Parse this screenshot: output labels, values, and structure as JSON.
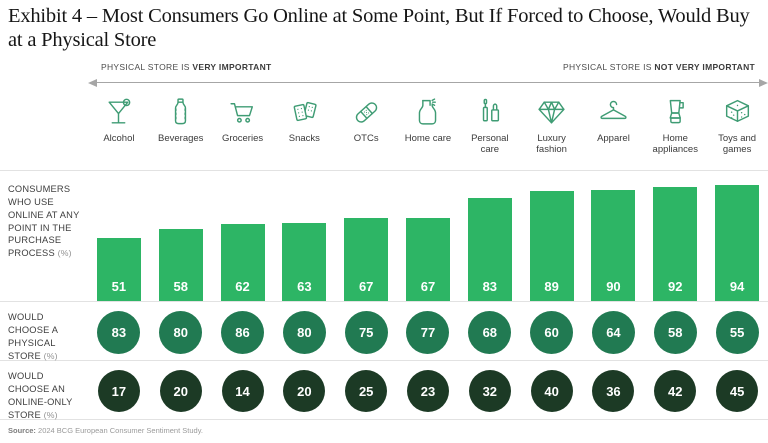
{
  "title": "Exhibit 4 – Most Consumers Go Online at Some Point, But If Forced to Choose, Would Buy at a Physical Store",
  "axis": {
    "left_text": "PHYSICAL STORE IS ",
    "left_bold": "VERY IMPORTANT",
    "right_text": "PHYSICAL STORE IS ",
    "right_bold": "NOT VERY IMPORTANT"
  },
  "rows": {
    "online_use": {
      "label": "CONSUMERS WHO USE ONLINE AT ANY POINT IN THE PURCHASE PROCESS ",
      "suffix": "(%)"
    },
    "physical": {
      "label": "WOULD CHOOSE A PHYSICAL STORE ",
      "suffix": "(%)"
    },
    "online_only": {
      "label": "WOULD CHOOSE AN ONLINE-ONLY STORE ",
      "suffix": "(%)"
    }
  },
  "source": {
    "bold": "Source:",
    "text": " 2024 BCG European Consumer Sentiment Study."
  },
  "colors": {
    "bar_green": "#2db565",
    "physical_circle": "#217a52",
    "online_circle": "#1c3a25",
    "icon_green": "#3f9c74"
  },
  "chart_data": {
    "type": "bar",
    "title": "Consumer online vs physical store behavior by category",
    "categories": [
      "Alcohol",
      "Beverages",
      "Groceries",
      "Snacks",
      "OTCs",
      "Home care",
      "Personal care",
      "Luxury fashion",
      "Apparel",
      "Home appliances",
      "Toys and games"
    ],
    "icons": [
      "martini-glass-icon",
      "water-bottle-icon",
      "shopping-cart-icon",
      "crackers-icon",
      "bandage-icon",
      "spray-bottle-icon",
      "cosmetics-icon",
      "diamond-icon",
      "hanger-icon",
      "blender-icon",
      "dice-icon"
    ],
    "series": [
      {
        "name": "Consumers who use online at any point in the purchase process (%)",
        "display": "bar",
        "values": [
          51,
          58,
          62,
          63,
          67,
          67,
          83,
          89,
          90,
          92,
          94
        ]
      },
      {
        "name": "Would choose a physical store (%)",
        "display": "circle",
        "values": [
          83,
          80,
          86,
          80,
          75,
          77,
          68,
          60,
          64,
          58,
          55
        ]
      },
      {
        "name": "Would choose an online-only store (%)",
        "display": "circle",
        "values": [
          17,
          20,
          14,
          20,
          25,
          23,
          32,
          40,
          36,
          42,
          45
        ]
      }
    ],
    "xlabel": "Categories ordered from physical store very important to not very important",
    "ylabel": "Percent",
    "ylim": [
      0,
      100
    ],
    "grid": false,
    "legend_position": "row-labels-left"
  }
}
